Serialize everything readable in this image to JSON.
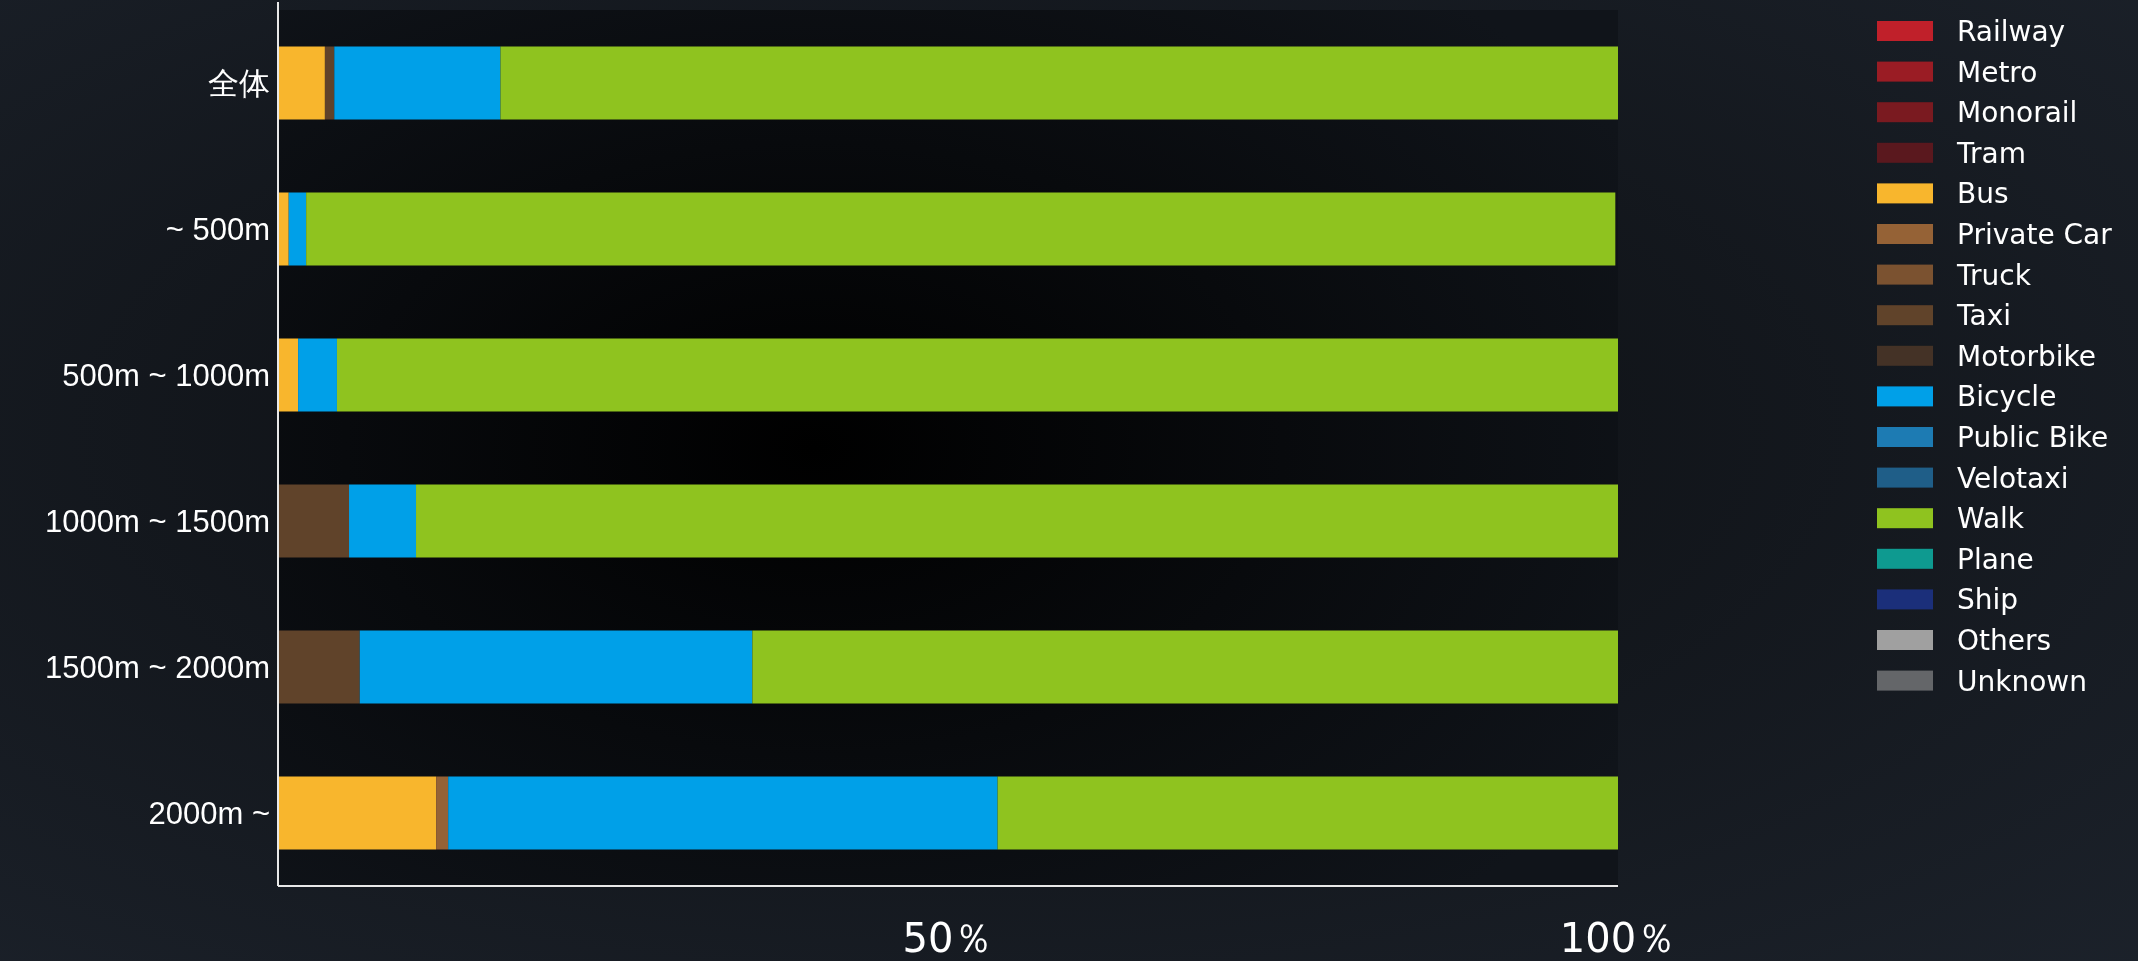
{
  "chart_data": {
    "type": "bar",
    "orientation": "horizontal",
    "stacked": true,
    "legend": "top right",
    "categories": [
      "全体",
      "~ 500m",
      "500m ~ 1000m",
      "1000m ~ 1500m",
      "1500m ~ 2000m",
      "2000m ~"
    ],
    "xlim": [
      0,
      100
    ],
    "xticks": [
      {
        "value": 50,
        "label": "50％"
      },
      {
        "value": 100,
        "label": "100％"
      }
    ],
    "series": [
      {
        "name": "Railway",
        "color": "#c0202a",
        "values": [
          0,
          0,
          0,
          0,
          0,
          0
        ]
      },
      {
        "name": "Metro",
        "color": "#9a1c24",
        "values": [
          0,
          0,
          0,
          0,
          0,
          0
        ]
      },
      {
        "name": "Monorail",
        "color": "#7a1a20",
        "values": [
          0,
          0,
          0,
          0,
          0,
          0
        ]
      },
      {
        "name": "Tram",
        "color": "#5a181e",
        "values": [
          0,
          0,
          0,
          0,
          0,
          0
        ]
      },
      {
        "name": "Bus",
        "color": "#f8b62d",
        "values": [
          3.5,
          0.8,
          1.5,
          0,
          0,
          11.8
        ]
      },
      {
        "name": "Private Car",
        "color": "#956236",
        "values": [
          0,
          0,
          0,
          0,
          0,
          0.9
        ]
      },
      {
        "name": "Truck",
        "color": "#7b5230",
        "values": [
          0,
          0,
          0,
          0,
          0,
          0
        ]
      },
      {
        "name": "Taxi",
        "color": "#60432a",
        "values": [
          0.7,
          0,
          0,
          5.3,
          6.1,
          0
        ]
      },
      {
        "name": "Motorbike",
        "color": "#443226",
        "values": [
          0,
          0,
          0,
          0,
          0,
          0
        ]
      },
      {
        "name": "Bicycle",
        "color": "#00a0e8",
        "values": [
          12.4,
          1.3,
          2.9,
          5.0,
          29.3,
          41.0
        ]
      },
      {
        "name": "Public Bike",
        "color": "#1d7bb3",
        "values": [
          0,
          0,
          0,
          0,
          0,
          0
        ]
      },
      {
        "name": "Velotaxi",
        "color": "#1f5e88",
        "values": [
          0,
          0,
          0,
          0,
          0,
          0
        ]
      },
      {
        "name": "Walk",
        "color": "#8fc31f",
        "values": [
          83.4,
          97.7,
          95.6,
          89.7,
          64.6,
          46.3
        ]
      },
      {
        "name": "Plane",
        "color": "#0e9a90",
        "values": [
          0,
          0,
          0,
          0,
          0,
          0
        ]
      },
      {
        "name": "Ship",
        "color": "#1b2f7a",
        "values": [
          0,
          0,
          0,
          0,
          0,
          0
        ]
      },
      {
        "name": "Others",
        "color": "#a0a0a0",
        "values": [
          0,
          0,
          0,
          0,
          0,
          0
        ]
      },
      {
        "name": "Unknown",
        "color": "#646669",
        "values": [
          0,
          0,
          0,
          0,
          0,
          0
        ]
      }
    ]
  }
}
